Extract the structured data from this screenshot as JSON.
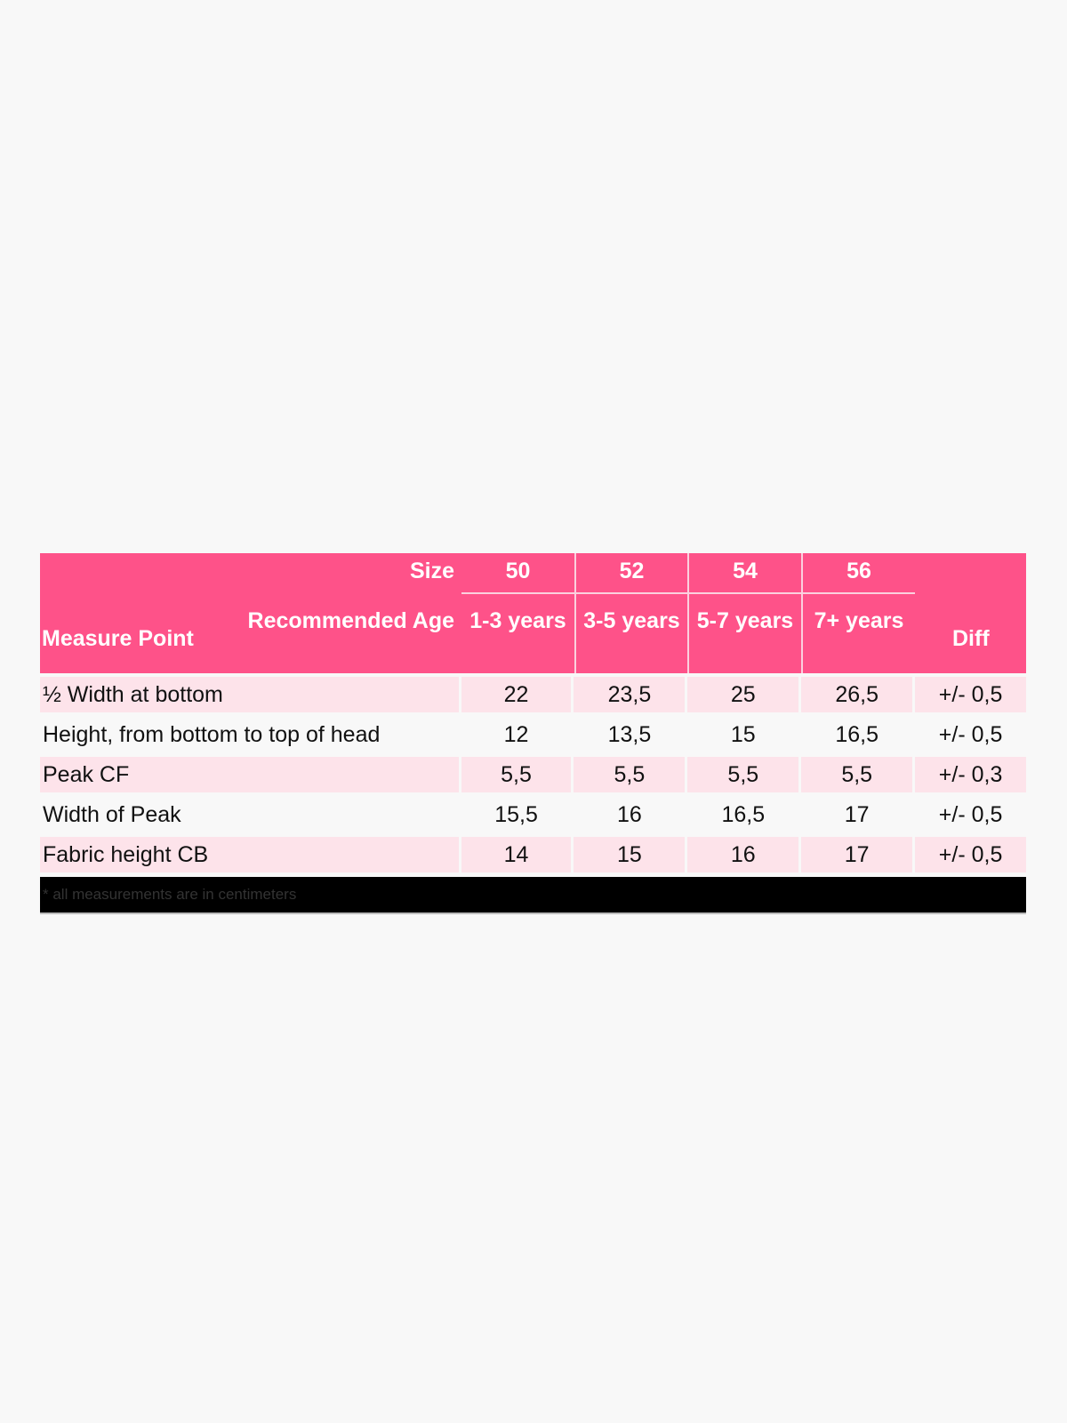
{
  "table": {
    "header": {
      "size_label": "Size",
      "age_label": "Recommended Age",
      "measure_label": "Measure Point",
      "diff_label": "Diff",
      "sizes": [
        "50",
        "52",
        "54",
        "56"
      ],
      "ages": [
        "1-3 years",
        "3-5 years",
        "5-7 years",
        "7+ years"
      ]
    },
    "rows": [
      {
        "label": "½ Width at bottom",
        "values": [
          "22",
          "23,5",
          "25",
          "26,5"
        ],
        "diff": "+/- 0,5"
      },
      {
        "label": "Height, from bottom to top of head",
        "values": [
          "12",
          "13,5",
          "15",
          "16,5"
        ],
        "diff": "+/- 0,5"
      },
      {
        "label": "Peak CF",
        "values": [
          "5,5",
          "5,5",
          "5,5",
          "5,5"
        ],
        "diff": "+/- 0,3"
      },
      {
        "label": "Width of Peak",
        "values": [
          "15,5",
          "16",
          "16,5",
          "17"
        ],
        "diff": "+/- 0,5"
      },
      {
        "label": "Fabric height CB",
        "values": [
          "14",
          "15",
          "16",
          "17"
        ],
        "diff": "+/- 0,5"
      }
    ],
    "footnote": "* all measurements are in centimeters"
  },
  "colors": {
    "header": "#fe5289",
    "row_alt": "#fde3ea",
    "footer": "#000000"
  }
}
